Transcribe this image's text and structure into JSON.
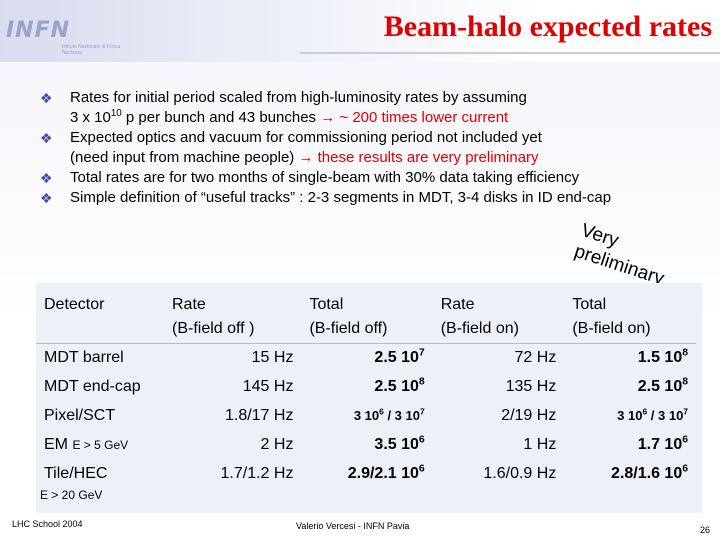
{
  "logo": {
    "text": "INFN",
    "subtitle": "Istituto Nazionale di Fisica Nucleare"
  },
  "title": "Beam-halo expected rates",
  "bullets": [
    {
      "pre": "Rates for initial period scaled from high-luminosity rates by assuming",
      "line2": "3 x 10",
      "line2_sup": "10",
      "line2_mid": " p per bunch and 43 bunches ",
      "line2_accent": "→ ~ 200 times lower current"
    },
    {
      "pre": "Expected optics and vacuum for commissioning period not included yet",
      "line2": "(need input from machine people) ",
      "line2_accent": "→ these results are very preliminary"
    },
    {
      "pre": "Total rates are for two months of single-beam with 30% data taking efficiency"
    },
    {
      "pre": "Simple definition of “useful tracks” : 2-3 segments in MDT, 3-4 disks in ID end-cap"
    }
  ],
  "stamp": "Very preliminary",
  "table": {
    "headers": [
      {
        "l1": "Detector",
        "l2": ""
      },
      {
        "l1": "Rate",
        "l2": "(B-field off )"
      },
      {
        "l1": "Total",
        "l2": "(B-field off)"
      },
      {
        "l1": "Rate",
        "l2": "(B-field on)"
      },
      {
        "l1": "Total",
        "l2": "(B-field on)"
      }
    ],
    "rows": [
      {
        "det": "MDT barrel",
        "rate_off": "15 Hz",
        "total_off": "2.5 10",
        "total_off_exp": "7",
        "rate_on": "72 Hz",
        "total_on": "1.5 10",
        "total_on_exp": "8"
      },
      {
        "det": "MDT end-cap",
        "rate_off": "145 Hz",
        "total_off": "2.5 10",
        "total_off_exp": "8",
        "rate_on": "135 Hz",
        "total_on": "2.5 10",
        "total_on_exp": "8"
      },
      {
        "det": "Pixel/SCT",
        "rate_off": "1.8/17 Hz",
        "total_off": "3 10",
        "total_off_exp": "6",
        "total_off2": " / 3 10",
        "total_off2_exp": "7",
        "rate_on": "2/19 Hz",
        "total_on": "3 10",
        "total_on_exp": "6",
        "total_on2": " / 3 10",
        "total_on2_exp": "7"
      },
      {
        "det": "EM",
        "det_small": "E > 5 GeV",
        "rate_off": "2 Hz",
        "total_off": "3.5 10",
        "total_off_exp": "6",
        "rate_on": "1 Hz",
        "total_on": "1.7 10",
        "total_on_exp": "6"
      },
      {
        "det": "Tile/HEC",
        "rate_off": "1.7/1.2 Hz",
        "total_off": "2.9/2.1 10",
        "total_off_exp": "6",
        "rate_on": "1.6/0.9 Hz",
        "total_on": "2.8/1.6 10",
        "total_on_exp": "6"
      }
    ],
    "tile_sub": "E > 20 GeV"
  },
  "footer": {
    "left": "LHC School 2004",
    "center": "Valerio Vercesi - INFN Pavia",
    "page": "26"
  },
  "colors": {
    "title": "#e00000",
    "accent": "#e00000",
    "bullet": "#3a4aa0"
  },
  "icons": {
    "bullet": "diamond-bullet-icon"
  }
}
